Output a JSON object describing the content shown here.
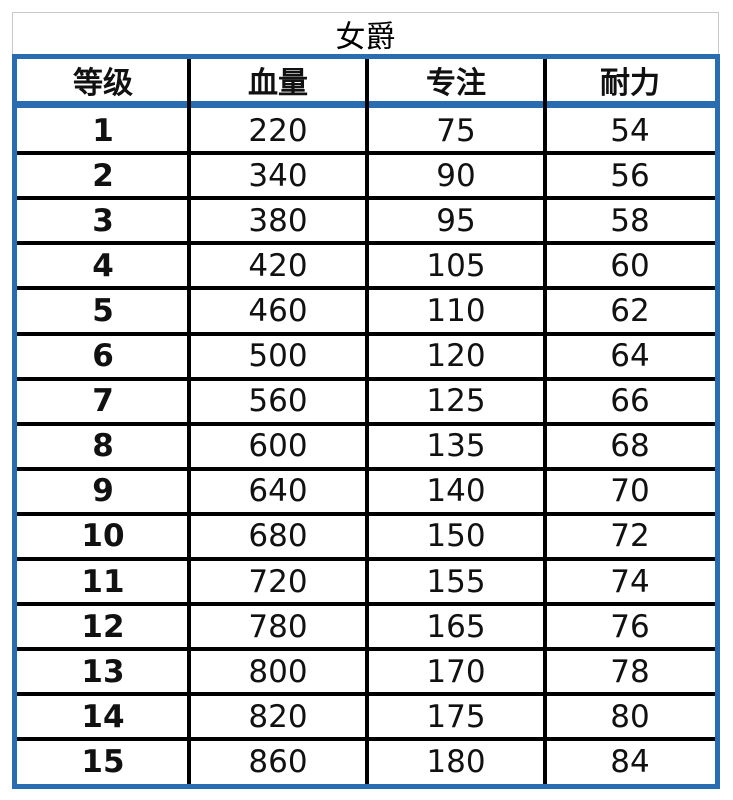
{
  "title": "女爵",
  "table": {
    "headers": [
      "等级",
      "血量",
      "专注",
      "耐力"
    ],
    "rows": [
      [
        "1",
        "220",
        "75",
        "54"
      ],
      [
        "2",
        "340",
        "90",
        "56"
      ],
      [
        "3",
        "380",
        "95",
        "58"
      ],
      [
        "4",
        "420",
        "105",
        "60"
      ],
      [
        "5",
        "460",
        "110",
        "62"
      ],
      [
        "6",
        "500",
        "120",
        "64"
      ],
      [
        "7",
        "560",
        "125",
        "66"
      ],
      [
        "8",
        "600",
        "135",
        "68"
      ],
      [
        "9",
        "640",
        "140",
        "70"
      ],
      [
        "10",
        "680",
        "150",
        "72"
      ],
      [
        "11",
        "720",
        "155",
        "74"
      ],
      [
        "12",
        "780",
        "165",
        "76"
      ],
      [
        "13",
        "800",
        "170",
        "78"
      ],
      [
        "14",
        "820",
        "175",
        "80"
      ],
      [
        "15",
        "860",
        "180",
        "84"
      ]
    ]
  },
  "colors": {
    "border_accent": "#2a6cb0",
    "grid": "#000000"
  }
}
